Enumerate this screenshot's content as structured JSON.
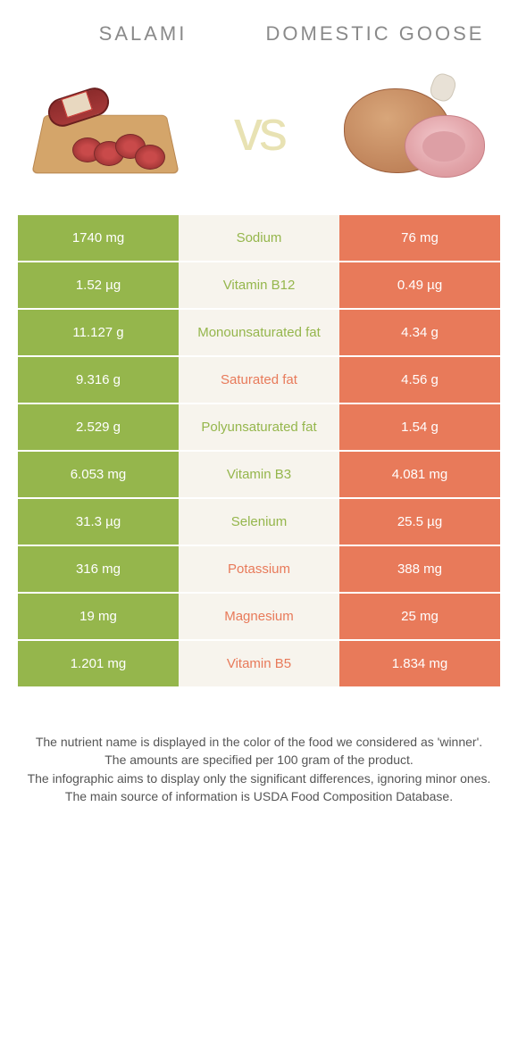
{
  "colors": {
    "left_bg": "#95b64c",
    "right_bg": "#e87a5a",
    "mid_bg": "#f7f4ed",
    "left_text": "#95b64c",
    "right_text": "#e87a5a",
    "vs_color": "#e8e2b3",
    "title_color": "#8a8a8a",
    "footer_color": "#555555"
  },
  "header": {
    "left_title": "Salami",
    "right_title": "Domestic goose",
    "vs_label": "vs"
  },
  "rows": [
    {
      "left": "1740 mg",
      "mid": "Sodium",
      "right": "76 mg",
      "winner": "left"
    },
    {
      "left": "1.52 µg",
      "mid": "Vitamin B12",
      "right": "0.49 µg",
      "winner": "left"
    },
    {
      "left": "11.127 g",
      "mid": "Monounsaturated fat",
      "right": "4.34 g",
      "winner": "left"
    },
    {
      "left": "9.316 g",
      "mid": "Saturated fat",
      "right": "4.56 g",
      "winner": "right"
    },
    {
      "left": "2.529 g",
      "mid": "Polyunsaturated fat",
      "right": "1.54 g",
      "winner": "left"
    },
    {
      "left": "6.053 mg",
      "mid": "Vitamin B3",
      "right": "4.081 mg",
      "winner": "left"
    },
    {
      "left": "31.3 µg",
      "mid": "Selenium",
      "right": "25.5 µg",
      "winner": "left"
    },
    {
      "left": "316 mg",
      "mid": "Potassium",
      "right": "388 mg",
      "winner": "right"
    },
    {
      "left": "19 mg",
      "mid": "Magnesium",
      "right": "25 mg",
      "winner": "right"
    },
    {
      "left": "1.201 mg",
      "mid": "Vitamin B5",
      "right": "1.834 mg",
      "winner": "right"
    }
  ],
  "footer": {
    "line1": "The nutrient name is displayed in the color of the food we considered as 'winner'.",
    "line2": "The amounts are specified per 100 gram of the product.",
    "line3": "The infographic aims to display only the significant differences, ignoring minor ones.",
    "line4": "The main source of information is USDA Food Composition Database."
  }
}
